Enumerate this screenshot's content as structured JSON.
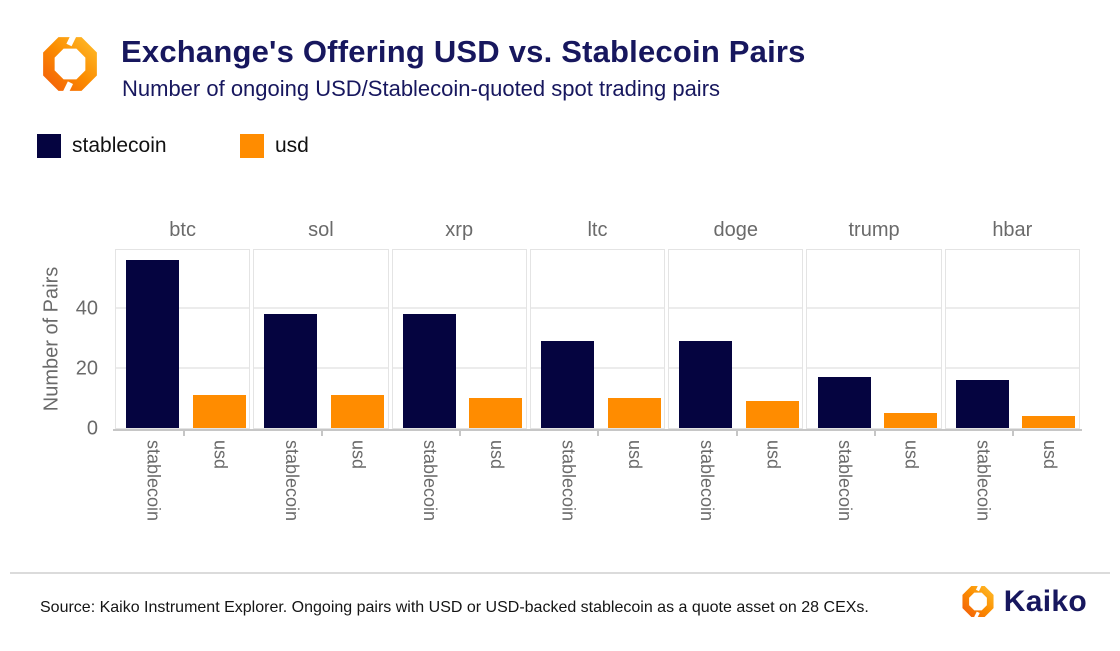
{
  "header": {
    "title": "Exchange's Offering USD vs. Stablecoin Pairs",
    "subtitle": "Number of ongoing USD/Stablecoin-quoted spot trading pairs"
  },
  "legend": {
    "items": [
      {
        "label": "stablecoin",
        "color": "#050440"
      },
      {
        "label": "usd",
        "color": "#ff8c00"
      }
    ]
  },
  "chart_data": {
    "type": "bar",
    "title": "Exchange's Offering USD vs. Stablecoin Pairs",
    "subtitle": "Number of ongoing USD/Stablecoin-quoted spot trading pairs",
    "facets": [
      "btc",
      "sol",
      "xrp",
      "ltc",
      "doge",
      "trump",
      "hbar"
    ],
    "categories": [
      "stablecoin",
      "usd"
    ],
    "series": [
      {
        "name": "stablecoin",
        "color": "#050440",
        "values": [
          56,
          38,
          38,
          29,
          29,
          17,
          16
        ]
      },
      {
        "name": "usd",
        "color": "#ff8c00",
        "values": [
          11,
          11,
          10,
          10,
          9,
          5,
          4
        ]
      }
    ],
    "xlabel": "",
    "ylabel": "Number of Pairs",
    "yticks": [
      0,
      20,
      40
    ],
    "ylim": [
      0,
      60
    ],
    "grid": true,
    "legend_position": "top-left"
  },
  "icons": {
    "header_logo": "kaiko-mark",
    "footer_logo": "kaiko-mark"
  },
  "colors": {
    "stablecoin_navy": "#050440",
    "usd_orange": "#ff8c00",
    "title_navy": "#17175e",
    "axis_grey": "#6a6a6a"
  },
  "footer": {
    "source": "Source: Kaiko Instrument Explorer. Ongoing pairs with USD or USD-backed stablecoin as a quote asset on 28 CEXs.",
    "brand": "Kaiko"
  }
}
